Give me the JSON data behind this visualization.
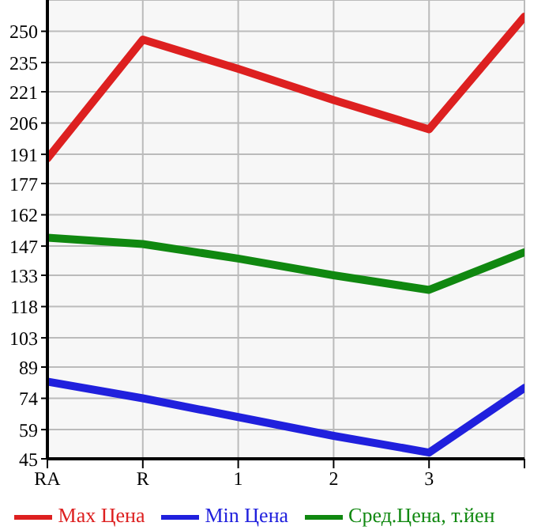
{
  "chart_data": {
    "type": "line",
    "categories": [
      "RA",
      "R",
      "1",
      "2",
      "3",
      null
    ],
    "series": [
      {
        "name": "Max Цена",
        "color": "#dd2020",
        "values": [
          189,
          246,
          232,
          217,
          203,
          257
        ]
      },
      {
        "name": "Min Цена",
        "color": "#2020dd",
        "values": [
          82,
          74,
          65,
          56,
          48,
          79
        ]
      },
      {
        "name": "Сред.Цена, т.йен",
        "color": "#108810",
        "values": [
          151,
          148,
          141,
          133,
          126,
          144
        ]
      }
    ],
    "ylim": [
      45,
      265
    ],
    "yticks": [
      45,
      59,
      74,
      89,
      103,
      118,
      133,
      147,
      162,
      177,
      191,
      206,
      221,
      235,
      250
    ],
    "grid": true,
    "legend": "bottom",
    "marker": "none",
    "line_style": "solid"
  }
}
